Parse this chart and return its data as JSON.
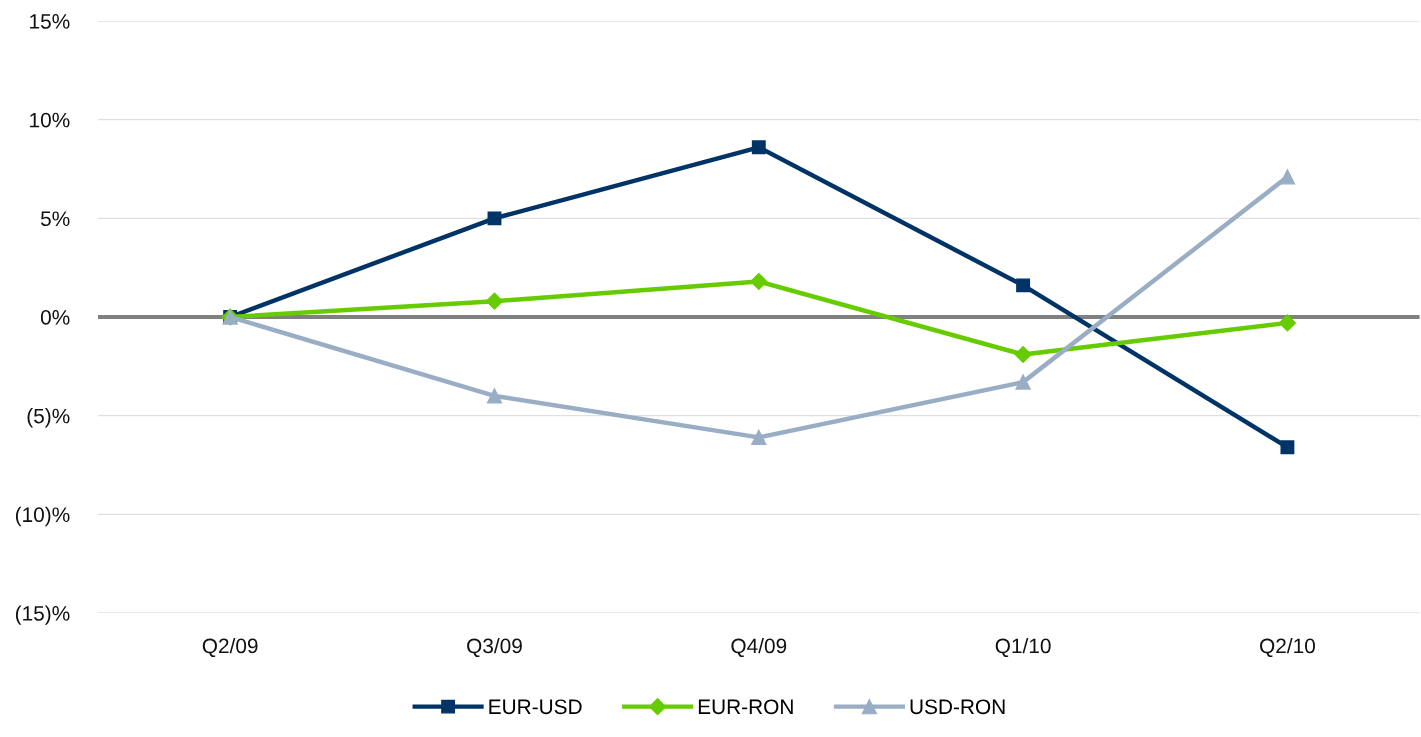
{
  "chart_data": {
    "type": "line",
    "categories": [
      "Q2/09",
      "Q3/09",
      "Q4/09",
      "Q1/10",
      "Q2/10"
    ],
    "series": [
      {
        "name": "EUR-USD",
        "color": "#003366",
        "marker": "square",
        "values": [
          0,
          5.0,
          8.6,
          1.6,
          -6.6
        ]
      },
      {
        "name": "EUR-RON",
        "color": "#66cc00",
        "marker": "diamond",
        "values": [
          0,
          0.8,
          1.8,
          -1.9,
          -0.3
        ]
      },
      {
        "name": "USD-RON",
        "color": "#99aec4",
        "marker": "triangle",
        "values": [
          0,
          -4.0,
          -6.1,
          -3.3,
          7.1
        ]
      }
    ],
    "ylim": [
      -15,
      15
    ],
    "yticks": [
      {
        "value": -15,
        "label": "(15)%"
      },
      {
        "value": -10,
        "label": "(10)%"
      },
      {
        "value": -5,
        "label": "(5)%"
      },
      {
        "value": 0,
        "label": "0%"
      },
      {
        "value": 5,
        "label": "5%"
      },
      {
        "value": 10,
        "label": "10%"
      },
      {
        "value": 15,
        "label": "15%"
      }
    ],
    "ref_lines": [
      {
        "axis": "y",
        "value": 0,
        "color": "#808080"
      }
    ],
    "grid": "y",
    "legend": "bottom",
    "line_style": "solid"
  }
}
